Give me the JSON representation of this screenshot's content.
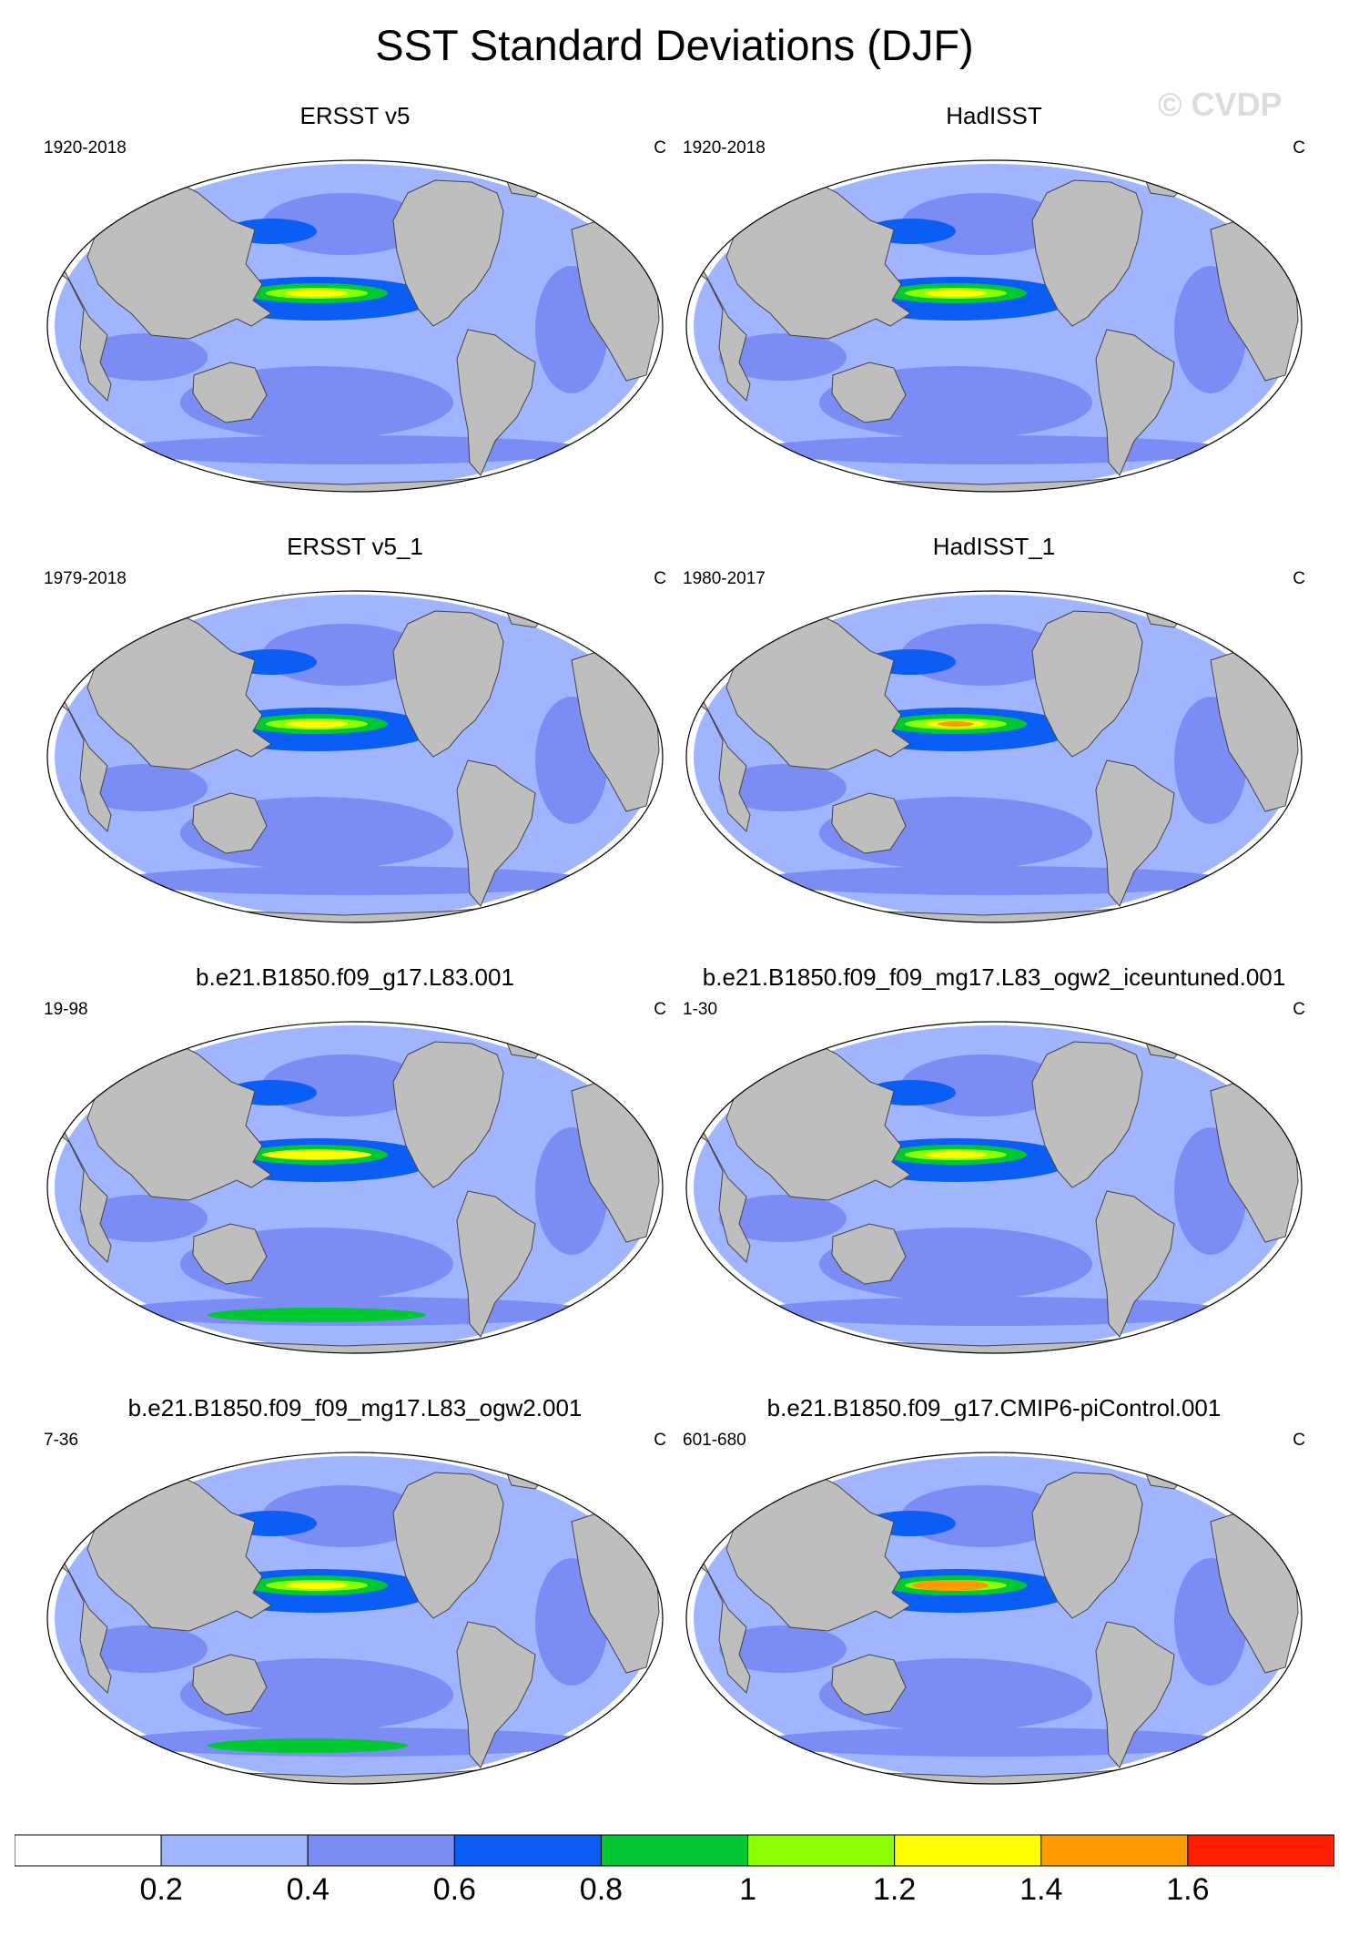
{
  "title": "SST Standard Deviations (DJF)",
  "watermark": "© CVDP",
  "colors": {
    "ocean_levels": [
      "#ffffff",
      "#a0b4ff",
      "#7b8cf5",
      "#0a5ef5",
      "#00c832",
      "#8cff00",
      "#ffff00",
      "#ff9b00",
      "#ff1e00"
    ],
    "land": "#bebebe",
    "outline": "#444444"
  },
  "chart_data": {
    "type": "contour-map-grid",
    "projection": "Robinson (global)",
    "panels": [
      {
        "title": "ERSST v5",
        "years": "1920-2018",
        "units": "C"
      },
      {
        "title": "HadISST",
        "years": "1920-2018",
        "units": "C"
      },
      {
        "title": "ERSST v5_1",
        "years": "1979-2018",
        "units": "C"
      },
      {
        "title": "HadISST_1",
        "years": "1980-2017",
        "units": "C"
      },
      {
        "title": "b.e21.B1850.f09_g17.L83.001",
        "years": "19-98",
        "units": "C"
      },
      {
        "title": "b.e21.B1850.f09_f09_mg17.L83_ogw2_iceuntuned.001",
        "years": "1-30",
        "units": "C"
      },
      {
        "title": "b.e21.B1850.f09_f09_mg17.L83_ogw2.001",
        "years": "7-36",
        "units": "C"
      },
      {
        "title": "b.e21.B1850.f09_g17.CMIP6-piControl.001",
        "years": "601-680",
        "units": "C"
      }
    ],
    "colorbar": {
      "levels": [
        0.2,
        0.4,
        0.6,
        0.8,
        1,
        1.2,
        1.4,
        1.6
      ],
      "labels": [
        "0.2",
        "0.4",
        "0.6",
        "0.8",
        "1",
        "1.2",
        "1.4",
        "1.6"
      ]
    }
  }
}
